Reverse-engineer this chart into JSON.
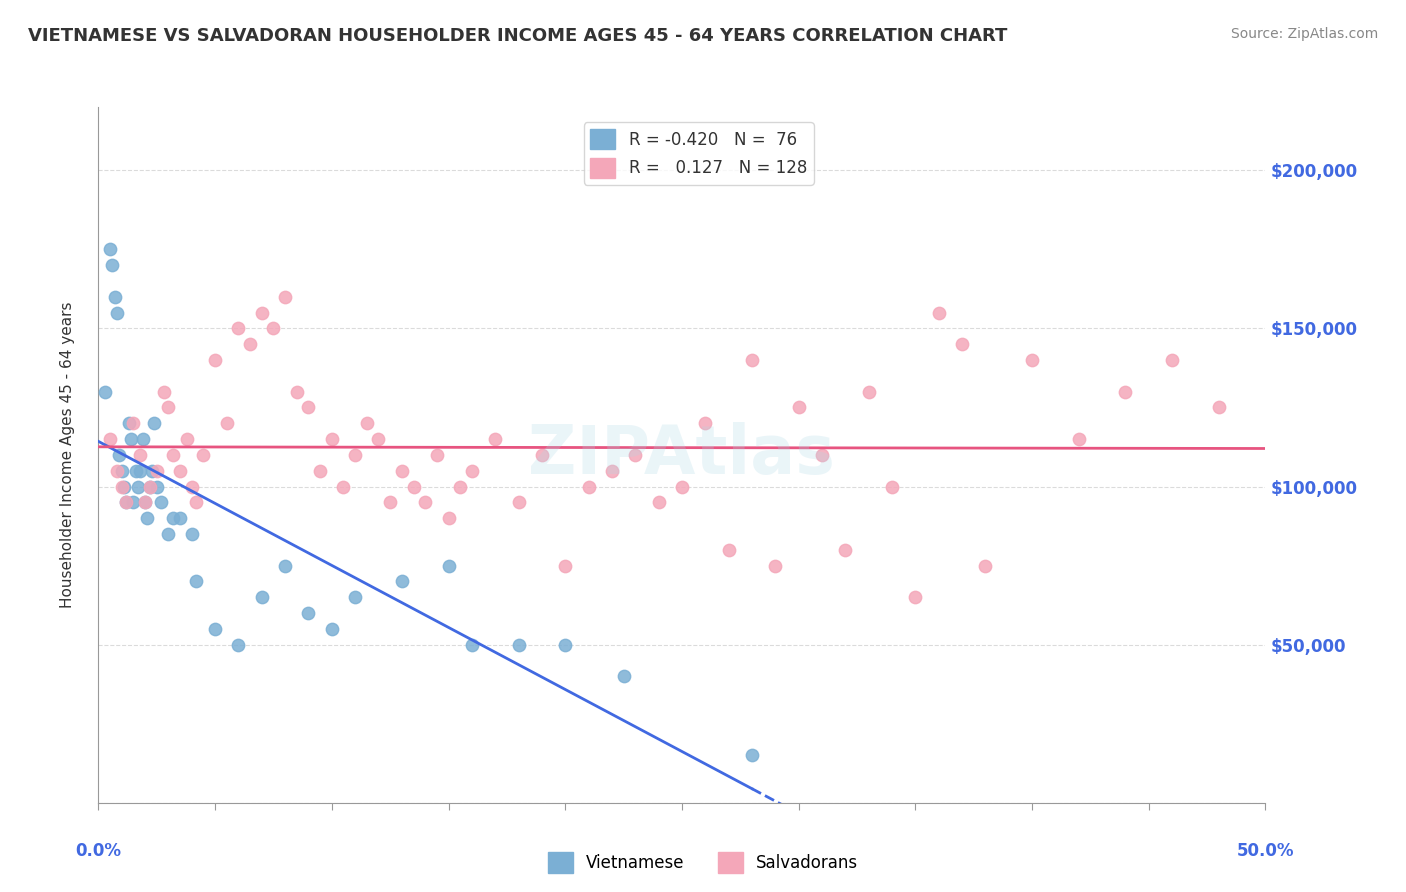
{
  "title": "VIETNAMESE VS SALVADORAN HOUSEHOLDER INCOME AGES 45 - 64 YEARS CORRELATION CHART",
  "source": "Source: ZipAtlas.com",
  "ylabel": "Householder Income Ages 45 - 64 years",
  "xlim": [
    0.0,
    50.0
  ],
  "ylim": [
    0,
    220000
  ],
  "yticks": [
    0,
    50000,
    100000,
    150000,
    200000
  ],
  "ytick_labels": [
    "",
    "$50,000",
    "$100,000",
    "$150,000",
    "$200,000"
  ],
  "legend_R1": "-0.420",
  "legend_N1": "76",
  "legend_R2": "0.127",
  "legend_N2": "128",
  "color_vietnamese": "#7BAFD4",
  "color_salvadoran": "#F4A7B9",
  "color_trend_vietnamese": "#4169E1",
  "color_trend_salvadoran": "#E75480",
  "vietnamese_x": [
    0.3,
    0.5,
    0.6,
    0.7,
    0.8,
    0.9,
    1.0,
    1.1,
    1.2,
    1.3,
    1.4,
    1.5,
    1.6,
    1.7,
    1.8,
    1.9,
    2.0,
    2.1,
    2.2,
    2.3,
    2.4,
    2.5,
    2.7,
    3.0,
    3.2,
    3.5,
    4.0,
    4.2,
    5.0,
    6.0,
    7.0,
    8.0,
    9.0,
    10.0,
    11.0,
    13.0,
    15.0,
    16.0,
    18.0,
    20.0,
    22.5,
    28.0
  ],
  "vietnamese_y": [
    130000,
    175000,
    170000,
    160000,
    155000,
    110000,
    105000,
    100000,
    95000,
    120000,
    115000,
    95000,
    105000,
    100000,
    105000,
    115000,
    95000,
    90000,
    100000,
    105000,
    120000,
    100000,
    95000,
    85000,
    90000,
    90000,
    85000,
    70000,
    55000,
    50000,
    65000,
    75000,
    60000,
    55000,
    65000,
    70000,
    75000,
    50000,
    50000,
    50000,
    40000,
    15000
  ],
  "salvadoran_x": [
    0.5,
    0.8,
    1.0,
    1.2,
    1.5,
    1.8,
    2.0,
    2.2,
    2.5,
    2.8,
    3.0,
    3.2,
    3.5,
    3.8,
    4.0,
    4.2,
    4.5,
    5.0,
    5.5,
    6.0,
    6.5,
    7.0,
    7.5,
    8.0,
    8.5,
    9.0,
    9.5,
    10.0,
    10.5,
    11.0,
    11.5,
    12.0,
    12.5,
    13.0,
    13.5,
    14.0,
    14.5,
    15.0,
    15.5,
    16.0,
    17.0,
    18.0,
    19.0,
    20.0,
    21.0,
    22.0,
    23.0,
    24.0,
    25.0,
    26.0,
    27.0,
    28.0,
    29.0,
    30.0,
    31.0,
    32.0,
    33.0,
    34.0,
    35.0,
    36.0,
    37.0,
    38.0,
    40.0,
    42.0,
    44.0,
    46.0,
    48.0
  ],
  "salvadoran_y": [
    115000,
    105000,
    100000,
    95000,
    120000,
    110000,
    95000,
    100000,
    105000,
    130000,
    125000,
    110000,
    105000,
    115000,
    100000,
    95000,
    110000,
    140000,
    120000,
    150000,
    145000,
    155000,
    150000,
    160000,
    130000,
    125000,
    105000,
    115000,
    100000,
    110000,
    120000,
    115000,
    95000,
    105000,
    100000,
    95000,
    110000,
    90000,
    100000,
    105000,
    115000,
    95000,
    110000,
    75000,
    100000,
    105000,
    110000,
    95000,
    100000,
    120000,
    80000,
    140000,
    75000,
    125000,
    110000,
    80000,
    130000,
    100000,
    65000,
    155000,
    145000,
    75000,
    140000,
    115000,
    130000,
    140000,
    125000
  ]
}
